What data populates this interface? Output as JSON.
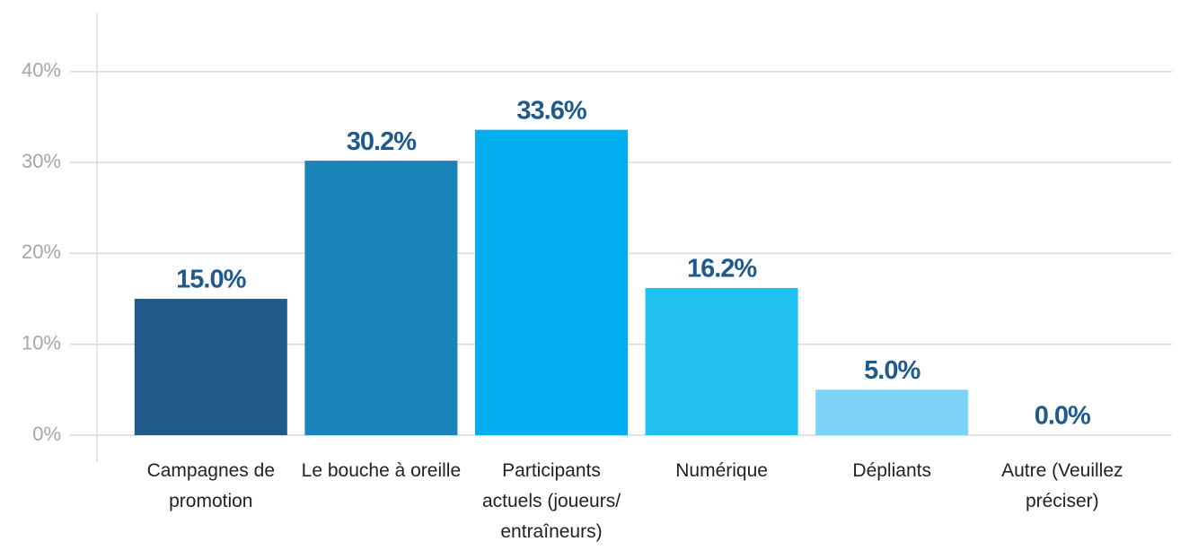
{
  "chart_data": {
    "type": "bar",
    "categories": [
      "Campagnes de promotion",
      "Le bouche à oreille",
      "Participants actuels (joueurs/ entraîneurs)",
      "Numérique",
      "Dépliants",
      "Autre (Veuillez préciser)"
    ],
    "values": [
      15.0,
      30.2,
      33.6,
      16.2,
      5.0,
      0.0
    ],
    "value_labels": [
      "15.0%",
      "30.2%",
      "33.6%",
      "16.2%",
      "5.0%",
      "0.0%"
    ],
    "colors": [
      "#1f5a8a",
      "#1a84b8",
      "#03aeef",
      "#20c0ef",
      "#7dd3f5",
      "#b0e6fa"
    ],
    "ylim": [
      0,
      46.4
    ],
    "yticks": [
      {
        "value": 0,
        "label": "0%"
      },
      {
        "value": 10,
        "label": "10%"
      },
      {
        "value": 20,
        "label": "20%"
      },
      {
        "value": 30,
        "label": "30%"
      },
      {
        "value": 40,
        "label": "40%"
      }
    ],
    "grid": true
  }
}
